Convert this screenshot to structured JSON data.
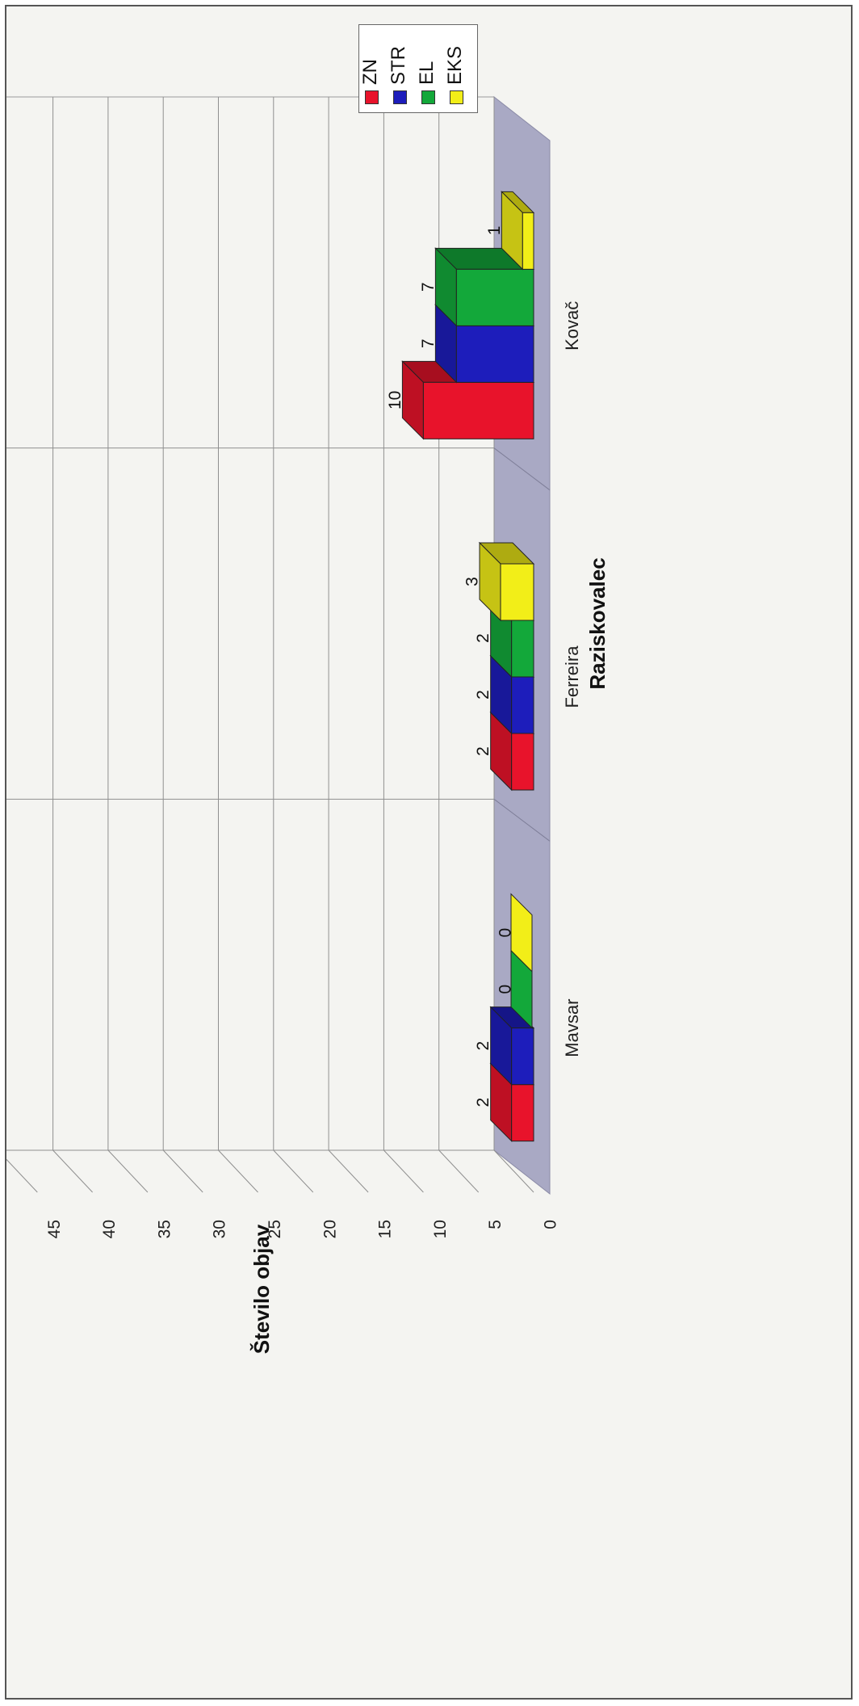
{
  "chart_data": {
    "type": "bar",
    "orientation": "rotated-90-ccw",
    "style": "3d-clustered",
    "categories": [
      "Kovač",
      "Ferreira",
      "Mavsar"
    ],
    "series": [
      {
        "name": "ZN",
        "color": "#e8132b",
        "values": [
          10,
          2,
          2
        ]
      },
      {
        "name": "STR",
        "color": "#1d1dbb",
        "values": [
          7,
          2,
          2
        ]
      },
      {
        "name": "EL",
        "color": "#13a83a",
        "values": [
          7,
          2,
          0
        ]
      },
      {
        "name": "EKS",
        "color": "#f2ee18",
        "values": [
          1,
          3,
          0
        ]
      }
    ],
    "data_labels": {
      "Kovač": [
        "10",
        "7",
        "7",
        "1"
      ],
      "Ferreira": [
        "2",
        "2",
        "2",
        "3"
      ],
      "Mavsar": [
        "2",
        "2",
        "0",
        "0"
      ]
    },
    "ylabel": "Število objav",
    "xlabel": "Raziskovalec",
    "yticks": [
      "0",
      "5",
      "10",
      "15",
      "20",
      "25",
      "30",
      "35",
      "40",
      "45"
    ],
    "ylim": [
      0,
      45
    ],
    "grid": true,
    "legend_position": "top-right"
  }
}
